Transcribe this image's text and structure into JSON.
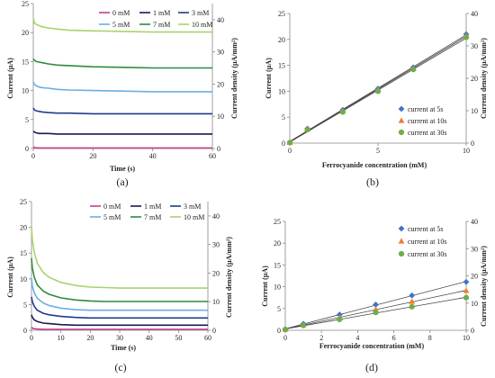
{
  "chart_data": [
    {
      "id": "a",
      "type": "line",
      "panel_label": "(a)",
      "xlabel": "Time (s)",
      "ylabel": "Current (μA)",
      "y2label": "Current density (μA/mm²)",
      "xlim": [
        0,
        60
      ],
      "ylim": [
        0,
        25
      ],
      "y2lim": [
        0,
        45
      ],
      "xticks": [
        "0",
        "20",
        "40",
        "60"
      ],
      "yticks": [
        "0",
        "5",
        "10",
        "15",
        "20",
        "25"
      ],
      "y2ticks": [
        "0",
        "10",
        "20",
        "30",
        "40"
      ],
      "legend_position": "top",
      "x": [
        0,
        0.2,
        0.5,
        1,
        2,
        3,
        5,
        8,
        12,
        20,
        30,
        40,
        50,
        60
      ],
      "series": [
        {
          "name": "0 mM",
          "color": "#c04090",
          "values": [
            0.3,
            0.2,
            0.15,
            0.12,
            0.1,
            0.1,
            0.1,
            0.1,
            0.1,
            0.1,
            0.1,
            0.1,
            0.1,
            0.1
          ]
        },
        {
          "name": "1 mM",
          "color": "#1a1a50",
          "values": [
            3.0,
            2.9,
            2.8,
            2.7,
            2.6,
            2.6,
            2.6,
            2.5,
            2.5,
            2.5,
            2.5,
            2.5,
            2.5,
            2.5
          ]
        },
        {
          "name": "3 mM",
          "color": "#1f3b8c",
          "values": [
            7.0,
            6.8,
            6.6,
            6.5,
            6.4,
            6.3,
            6.2,
            6.1,
            6.1,
            6.0,
            6.0,
            6.0,
            6.0,
            6.0
          ]
        },
        {
          "name": "5 mM",
          "color": "#6aaee3",
          "values": [
            11.5,
            11.2,
            11.0,
            10.8,
            10.6,
            10.5,
            10.4,
            10.2,
            10.1,
            10.0,
            9.9,
            9.8,
            9.8,
            9.8
          ]
        },
        {
          "name": "7 mM",
          "color": "#2e8b3d",
          "values": [
            15.5,
            15.3,
            15.2,
            15.0,
            14.9,
            14.8,
            14.6,
            14.4,
            14.3,
            14.1,
            14.0,
            13.9,
            13.9,
            13.9
          ]
        },
        {
          "name": "10 mM",
          "color": "#a8d46a",
          "values": [
            22.5,
            22.0,
            21.6,
            21.4,
            21.2,
            21.0,
            20.8,
            20.6,
            20.4,
            20.3,
            20.2,
            20.1,
            20.1,
            20.1
          ]
        }
      ]
    },
    {
      "id": "b",
      "type": "scatter",
      "panel_label": "(b)",
      "xlabel": "Ferrocyanide concentration (mM)",
      "ylabel": "Current (μA)",
      "y2label": "Current density (μA/mm²)",
      "xlim": [
        0,
        10
      ],
      "ylim": [
        0,
        25
      ],
      "y2lim": [
        0,
        40
      ],
      "xticks": [
        "0",
        "5",
        "10"
      ],
      "yticks": [
        "0",
        "5",
        "10",
        "15",
        "20",
        "25"
      ],
      "y2ticks": [
        "0",
        "10",
        "20",
        "30",
        "40"
      ],
      "legend_position": "bottom-right",
      "x": [
        0,
        1,
        3,
        5,
        7,
        10
      ],
      "series": [
        {
          "name": "current at 5s",
          "color": "#4472c4",
          "marker": "diamond",
          "values": [
            0.1,
            2.8,
            6.4,
            10.5,
            14.6,
            21.0
          ]
        },
        {
          "name": "current at 10s",
          "color": "#ed7d31",
          "marker": "triangle",
          "values": [
            0.1,
            2.7,
            6.2,
            10.3,
            14.4,
            20.7
          ]
        },
        {
          "name": "current at 30s",
          "color": "#70ad47",
          "marker": "circle",
          "values": [
            0.1,
            2.6,
            6.0,
            10.0,
            14.2,
            20.4
          ]
        }
      ]
    },
    {
      "id": "c",
      "type": "line",
      "panel_label": "(c)",
      "xlabel": "Time (s)",
      "ylabel": "Current (μA)",
      "y2label": "Current density (μA/mm²)",
      "xlim": [
        0,
        60
      ],
      "ylim": [
        0,
        25
      ],
      "y2lim": [
        0,
        45
      ],
      "xticks": [
        "0",
        "10",
        "20",
        "30",
        "40",
        "50",
        "60"
      ],
      "yticks": [
        "0",
        "5",
        "10",
        "15",
        "20",
        "25"
      ],
      "y2ticks": [
        "0",
        "10",
        "20",
        "30",
        "40"
      ],
      "legend_position": "top",
      "x": [
        0,
        0.3,
        1,
        2,
        4,
        6,
        10,
        15,
        20,
        25,
        30,
        40,
        50,
        60
      ],
      "series": [
        {
          "name": "0 mM",
          "color": "#c04090",
          "values": [
            0.6,
            0.4,
            0.3,
            0.25,
            0.2,
            0.2,
            0.2,
            0.2,
            0.2,
            0.2,
            0.2,
            0.2,
            0.2,
            0.2
          ]
        },
        {
          "name": "1 mM",
          "color": "#1a1a50",
          "values": [
            3.0,
            2.5,
            2.0,
            1.7,
            1.4,
            1.3,
            1.1,
            1.0,
            1.0,
            1.0,
            1.0,
            1.0,
            1.0,
            1.0
          ]
        },
        {
          "name": "3 mM",
          "color": "#1f3b8c",
          "values": [
            6.5,
            5.5,
            4.6,
            3.9,
            3.3,
            3.0,
            2.7,
            2.5,
            2.4,
            2.4,
            2.4,
            2.4,
            2.4,
            2.4
          ]
        },
        {
          "name": "5 mM",
          "color": "#6aaee3",
          "values": [
            10.0,
            8.5,
            7.2,
            6.2,
            5.3,
            4.8,
            4.3,
            4.0,
            3.9,
            3.9,
            3.9,
            3.9,
            3.9,
            3.9
          ]
        },
        {
          "name": "7 mM",
          "color": "#2e8b3d",
          "values": [
            14.0,
            12.0,
            10.2,
            8.8,
            7.6,
            7.0,
            6.3,
            5.9,
            5.7,
            5.6,
            5.6,
            5.6,
            5.6,
            5.6
          ]
        },
        {
          "name": "10 mM",
          "color": "#a8d46a",
          "values": [
            20.0,
            17.5,
            15.0,
            13.0,
            11.2,
            10.3,
            9.3,
            8.7,
            8.4,
            8.3,
            8.2,
            8.2,
            8.2,
            8.2
          ]
        }
      ]
    },
    {
      "id": "d",
      "type": "scatter",
      "panel_label": "(d)",
      "xlabel": "Ferrocyanide concentration (mM)",
      "ylabel": "Current (μA)",
      "y2label": "Current density (μA/mm²)",
      "xlim": [
        0,
        10
      ],
      "ylim": [
        0,
        25
      ],
      "y2lim": [
        0,
        40
      ],
      "xticks": [
        "0",
        "2",
        "4",
        "6",
        "8",
        "10"
      ],
      "yticks": [
        "0",
        "5",
        "10",
        "15",
        "20",
        "25"
      ],
      "y2ticks": [
        "0",
        "10",
        "20",
        "30",
        "40"
      ],
      "legend_position": "top-right",
      "x": [
        0,
        1,
        3,
        5,
        7,
        10
      ],
      "series": [
        {
          "name": "current at 5s",
          "color": "#4472c4",
          "marker": "diamond",
          "values": [
            0.2,
            1.5,
            3.6,
            5.9,
            8.0,
            11.1
          ]
        },
        {
          "name": "current at 10s",
          "color": "#ed7d31",
          "marker": "triangle",
          "values": [
            0.2,
            1.3,
            2.9,
            4.8,
            6.6,
            9.1
          ]
        },
        {
          "name": "current at 30s",
          "color": "#70ad47",
          "marker": "circle",
          "values": [
            0.2,
            1.1,
            2.5,
            4.1,
            5.4,
            7.5
          ]
        }
      ]
    }
  ]
}
